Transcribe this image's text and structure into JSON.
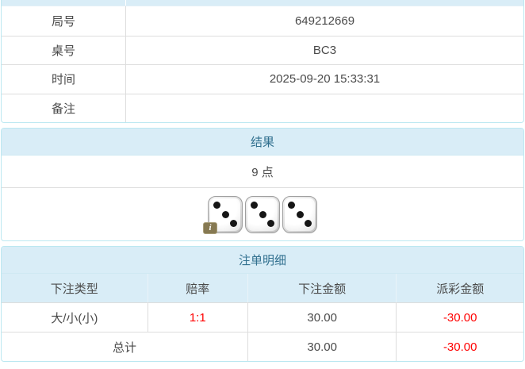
{
  "colors": {
    "panel_border": "#bce8f1",
    "section_header_bg": "#d9edf7",
    "section_header_text": "#31708f",
    "grid_line": "#dddddd",
    "body_text": "#4a4a4a",
    "negative_value": "#ff0000",
    "dice_badge_bg": "#867952"
  },
  "info_table": {
    "rows": [
      {
        "label": "局号",
        "value": "649212669"
      },
      {
        "label": "桌号",
        "value": "BC3"
      },
      {
        "label": "时间",
        "value": "2025-09-20 15:33:31"
      },
      {
        "label": "备注",
        "value": ""
      }
    ]
  },
  "result_panel": {
    "title": "结果",
    "points": "9 点",
    "dice": [
      3,
      3,
      3
    ]
  },
  "bets_panel": {
    "title": "注单明细",
    "columns": [
      "下注类型",
      "赔率",
      "下注金额",
      "派彩金额"
    ],
    "rows": [
      {
        "type": "大/小(小)",
        "odds": "1:1",
        "bet_amount": "30.00",
        "payout": "-30.00"
      }
    ],
    "total": {
      "label": "总计",
      "bet_amount": "30.00",
      "payout": "-30.00"
    }
  },
  "icons": {
    "dice_info_badge": "i"
  }
}
